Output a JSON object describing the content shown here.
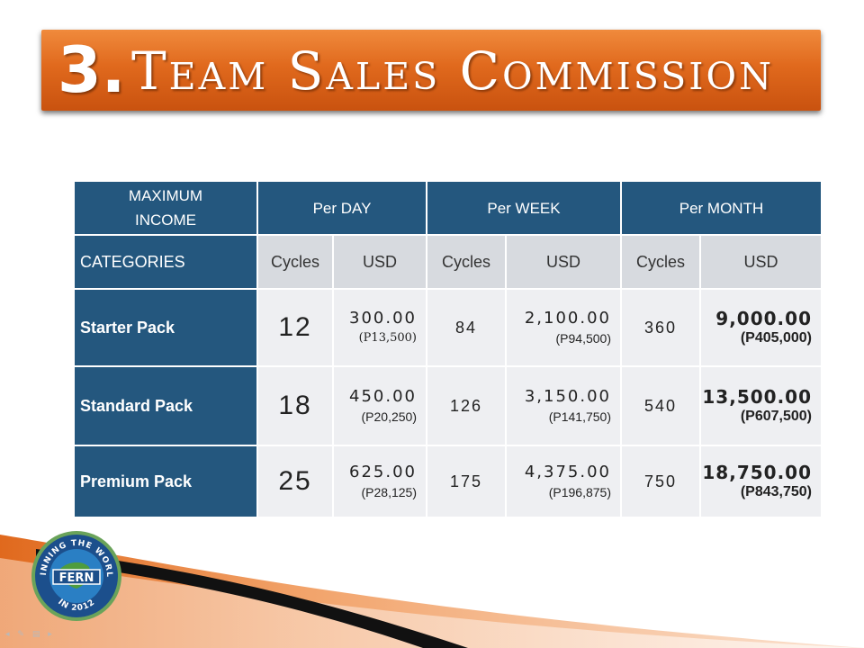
{
  "title": {
    "number": "3.",
    "text": "Team Sales Commission"
  },
  "table": {
    "corner_label": "MAXIMUM INCOME",
    "period_headers": [
      "Per DAY",
      "Per WEEK",
      "Per MONTH"
    ],
    "categories_label": "CATEGORIES",
    "sub_headers": [
      "Cycles",
      "USD",
      "Cycles",
      "USD",
      "Cycles",
      "USD"
    ],
    "rows": [
      {
        "name": "Starter Pack",
        "day_cycles": "12",
        "day_usd": "300.00",
        "day_php": "(P13,500)",
        "week_cycles": "84",
        "week_usd": "2,100.00",
        "week_php": "(P94,500)",
        "month_cycles": "360",
        "month_usd": "9,000.00",
        "month_php": "(P405,000)"
      },
      {
        "name": "Standard Pack",
        "day_cycles": "18",
        "day_usd": "450.00",
        "day_php": "(P20,250)",
        "week_cycles": "126",
        "week_usd": "3,150.00",
        "week_php": "(P141,750)",
        "month_cycles": "540",
        "month_usd": "13,500.00",
        "month_php": "(P607,500)"
      },
      {
        "name": "Premium Pack",
        "day_cycles": "25",
        "day_usd": "625.00",
        "day_php": "(P28,125)",
        "week_cycles": "175",
        "week_usd": "4,375.00",
        "week_php": "(P196,875)",
        "month_cycles": "750",
        "month_usd": "18,750.00",
        "month_php": "(P843,750)"
      }
    ]
  },
  "logo": {
    "top_text": "WINNING THE WORLD",
    "bottom_text": "IN 2012",
    "brand": "FERN"
  },
  "colors": {
    "banner": "#e0691d",
    "header_blue": "#24577e",
    "subheader_gray": "#d7dadf",
    "cell_gray": "#eeeff2"
  }
}
